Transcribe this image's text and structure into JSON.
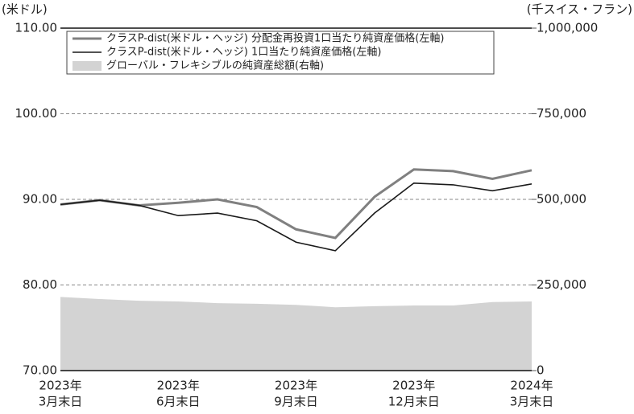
{
  "chart_data": {
    "type": "line",
    "y_label": "(米ドル)",
    "y2_label": "(千スイス・フラン)",
    "categories": [
      [
        "2023年",
        "3月末日"
      ],
      null,
      null,
      [
        "2023年",
        "6月末日"
      ],
      null,
      null,
      [
        "2023年",
        "9月末日"
      ],
      null,
      null,
      [
        "2023年",
        "12月末日"
      ],
      null,
      null,
      [
        "2024年",
        "3月末日"
      ]
    ],
    "ylim": [
      70,
      110
    ],
    "yticks": [
      {
        "value": 70,
        "label": "70.00"
      },
      {
        "value": 80,
        "label": "80.00"
      },
      {
        "value": 90,
        "label": "90.00"
      },
      {
        "value": 100,
        "label": "100.00"
      },
      {
        "value": 110,
        "label": "110.00"
      }
    ],
    "y2lim": [
      0,
      1000000
    ],
    "y2ticks": [
      0,
      {
        "value": 250000,
        "label": "250,000"
      },
      {
        "value": 500000,
        "label": "500,000"
      },
      {
        "value": 750000,
        "label": "750,000"
      },
      {
        "value": 1000000,
        "label": "1,000,000"
      }
    ],
    "grid": true,
    "series": [
      {
        "name": "クラスP-dist(米ドル・ヘッジ) 分配金再投資1口当たり純資産価格(左軸)",
        "color": "#808080",
        "type": "line",
        "values": [
          89.4,
          89.9,
          89.3,
          89.6,
          90.0,
          89.1,
          86.5,
          85.5,
          90.3,
          93.5,
          93.3,
          92.4,
          93.4
        ]
      },
      {
        "name": "クラスP-dist(米ドル・ヘッジ) 1口当たり純資産価格(左軸)",
        "color": "#1a1a1a",
        "type": "line",
        "values": [
          89.4,
          89.9,
          89.3,
          88.1,
          88.4,
          87.5,
          85.0,
          84.0,
          88.4,
          91.9,
          91.7,
          91.0,
          91.8
        ]
      },
      {
        "name": "グローバル・フレキシブルの純資産総額(右軸)",
        "color": "#d3d3d3",
        "type": "area",
        "axis": "y2",
        "values": [
          215000,
          209000,
          204000,
          202000,
          197000,
          195000,
          192000,
          185000,
          188000,
          190000,
          190000,
          200000,
          202000
        ]
      }
    ]
  }
}
